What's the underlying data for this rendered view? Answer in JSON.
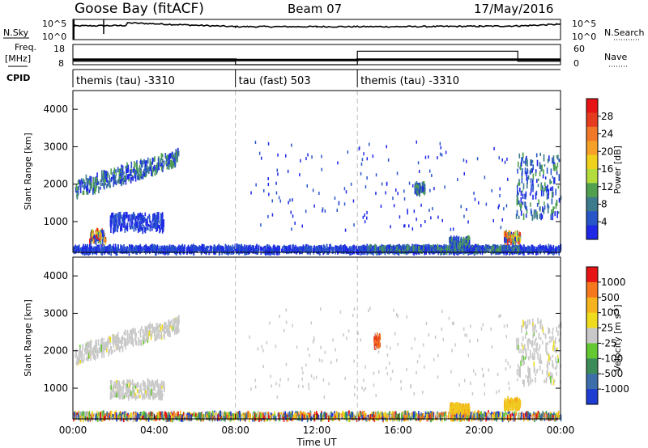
{
  "header": {
    "station": "Goose Bay (fitACF)",
    "beam": "Beam 07",
    "date": "17/May/2016"
  },
  "top_panels": {
    "nsky_label": "N.Sky",
    "nsearch_label": "N.Search",
    "nsky_ticks": [
      "10^5",
      "10^0"
    ],
    "nsearch_ticks": [
      "10^5",
      "10^0"
    ],
    "freq_label_line1": "Freq.",
    "freq_label_line2": "[MHz]",
    "freq_ticks": [
      "18",
      "8"
    ],
    "nave_label": "Nave",
    "nave_ticks": [
      "60",
      "0"
    ],
    "cpid_label": "CPID"
  },
  "chart_data": [
    {
      "type": "timeseries",
      "panel": "noise",
      "series": [
        {
          "name": "N.Sky",
          "x_hours": [
            0,
            0.1,
            2.6,
            2.7,
            8,
            12,
            16,
            20,
            22,
            23.8,
            24
          ],
          "y_log10": [
            3.5,
            3.6,
            3.7,
            4.4,
            3.4,
            3.4,
            3.4,
            3.5,
            3.6,
            4.0,
            4.1
          ]
        }
      ]
    },
    {
      "type": "timeseries",
      "panel": "freq-nave",
      "series": [
        {
          "name": "Freq.",
          "x_hours": [
            0,
            8,
            8,
            14,
            14,
            24
          ],
          "y": [
            10.5,
            10.5,
            10.3,
            10.3,
            10.5,
            10.5
          ]
        },
        {
          "name": "Nave",
          "x_hours": [
            0,
            8,
            8,
            14,
            14,
            21.9,
            21.9,
            24
          ],
          "y": [
            10,
            10,
            0,
            0,
            40,
            40,
            10,
            10
          ]
        }
      ]
    },
    {
      "type": "segments",
      "panel": "cpid",
      "segments": [
        {
          "start_hour": 0,
          "end_hour": 8,
          "label": "themis (tau) -3310"
        },
        {
          "start_hour": 8,
          "end_hour": 14,
          "label": "tau (fast) 503"
        },
        {
          "start_hour": 14,
          "end_hour": 24,
          "label": "themis (tau) -3310"
        }
      ]
    },
    {
      "type": "heatmap",
      "panel": "power",
      "ylabel": "Slant Range [km]",
      "ylim": [
        180,
        4500
      ],
      "yticks": [
        "1000",
        "2000",
        "3000",
        "4000"
      ],
      "colorbar": {
        "label": "Power [dB]",
        "ticks": [
          "4",
          "8",
          "12",
          "16",
          "20",
          "24",
          "28"
        ],
        "colors": [
          "#1e28e6",
          "#2855c8",
          "#3c7a8c",
          "#50a050",
          "#b4dc3c",
          "#f0d21e",
          "#f5a028",
          "#f07828",
          "#e63c1e",
          "#e61414"
        ]
      },
      "regions": [
        {
          "t0": 0.1,
          "t1": 5.2,
          "r0": 1650,
          "r1": 2100,
          "r0_end": 2500,
          "r1_end": 2900,
          "level": "mid"
        },
        {
          "t0": 0.8,
          "t1": 1.6,
          "r0": 450,
          "r1": 750,
          "level": "high"
        },
        {
          "t0": 1.8,
          "t1": 4.5,
          "r0": 750,
          "r1": 1200,
          "level": "low"
        },
        {
          "t0": 0,
          "t1": 24,
          "r0": 180,
          "r1": 320,
          "level": "low"
        },
        {
          "t0": 14.5,
          "t1": 22.0,
          "r0": 200,
          "r1": 320,
          "level": "mid"
        },
        {
          "t0": 21.2,
          "t1": 22.0,
          "r0": 450,
          "r1": 700,
          "level": "high"
        },
        {
          "t0": 18.5,
          "t1": 19.5,
          "r0": 350,
          "r1": 550,
          "level": "mid"
        },
        {
          "t0": 21.8,
          "t1": 24,
          "r0": 1100,
          "r1": 2800,
          "level": "mid"
        },
        {
          "t0": 16.8,
          "t1": 17.3,
          "r0": 1750,
          "r1": 2000,
          "level": "mid"
        }
      ]
    },
    {
      "type": "heatmap",
      "panel": "velocity",
      "xlabel": "Time UT",
      "ylabel": "Slant Range [km]",
      "ylim": [
        180,
        4500
      ],
      "yticks": [
        "1000",
        "2000",
        "3000",
        "4000"
      ],
      "xticks": [
        "00:00",
        "04:00",
        "08:00",
        "12:00",
        "16:00",
        "20:00",
        "00:00"
      ],
      "colorbar": {
        "label": "Velocity [m s^-1]",
        "ticks": [
          "1000",
          "500",
          "100",
          "25",
          "-25",
          "-100",
          "-500",
          "-1000"
        ],
        "colors": [
          "#1e3cd2",
          "#3c6eaa",
          "#3c8c5a",
          "#64c832",
          "#c8c8c8",
          "#f0dc1e",
          "#f5b41e",
          "#f5781e",
          "#e61414"
        ]
      },
      "regions": [
        {
          "t0": 0.1,
          "t1": 5.2,
          "r0": 1650,
          "r1": 2100,
          "r0_end": 2500,
          "r1_end": 2900,
          "level": "gray"
        },
        {
          "t0": 1.8,
          "t1": 4.5,
          "r0": 750,
          "r1": 1200,
          "level": "gray"
        },
        {
          "t0": 0,
          "t1": 24,
          "r0": 180,
          "r1": 320,
          "level": "mixed"
        },
        {
          "t0": 18.5,
          "t1": 19.5,
          "r0": 350,
          "r1": 550,
          "level": "yellow"
        },
        {
          "t0": 21.2,
          "t1": 22.0,
          "r0": 450,
          "r1": 700,
          "level": "yellow"
        },
        {
          "t0": 21.8,
          "t1": 24,
          "r0": 1100,
          "r1": 2800,
          "level": "gray"
        },
        {
          "t0": 14.8,
          "t1": 15.1,
          "r0": 2100,
          "r1": 2400,
          "level": "red"
        }
      ]
    }
  ]
}
